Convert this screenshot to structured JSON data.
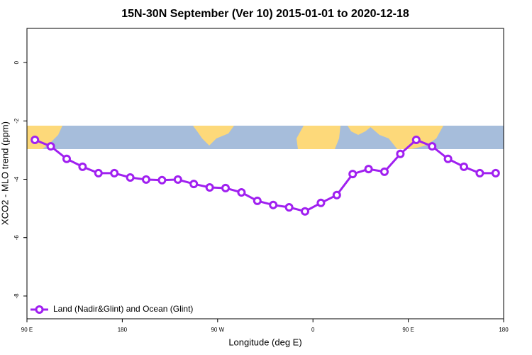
{
  "chart_data": {
    "type": "line",
    "title": "15N-30N September (Ver 10)   2015-01-01 to 2020-12-18",
    "x_label": "Longitude (deg E)",
    "y_label": "XCO2 - MLO trend (ppm)",
    "x": [
      97.5,
      112.5,
      127.5,
      142.5,
      157.5,
      172.5,
      187.5,
      202.5,
      217.5,
      232.5,
      247.5,
      262.5,
      277.5,
      292.5,
      307.5,
      322.5,
      337.5,
      352.5,
      367.5,
      382.5,
      397.5,
      412.5,
      427.5,
      442.5,
      457.5,
      472.5,
      487.5,
      502.5,
      517.5,
      532.5
    ],
    "series": [
      {
        "name": "Land (Nadir&Glint) and Ocean (Glint)",
        "color": "#a020f0",
        "values": [
          -2.65,
          -2.87,
          -3.3,
          -3.57,
          -3.79,
          -3.79,
          -3.94,
          -4.01,
          -4.03,
          -4.01,
          -4.16,
          -4.28,
          -4.3,
          -4.45,
          -4.74,
          -4.88,
          -4.96,
          -5.1,
          -4.81,
          -4.54,
          -3.82,
          -3.65,
          -3.74,
          -3.13,
          -2.65,
          -2.87,
          -3.3,
          -3.57,
          -3.79,
          -3.79
        ]
      }
    ],
    "xlim": [
      90,
      540
    ],
    "xticks": [
      {
        "value": 90,
        "label": "90 E"
      },
      180,
      {
        "value": 270,
        "label": "90 W"
      },
      {
        "value": 360,
        "label": "0"
      },
      {
        "value": 450,
        "label": "90 E"
      },
      {
        "value": 540,
        "label": "180"
      }
    ],
    "ylim": [
      -8.78,
      1.17
    ],
    "yticks": [
      0,
      -2,
      -4,
      -6,
      -8
    ],
    "legend": "bottom-left"
  }
}
